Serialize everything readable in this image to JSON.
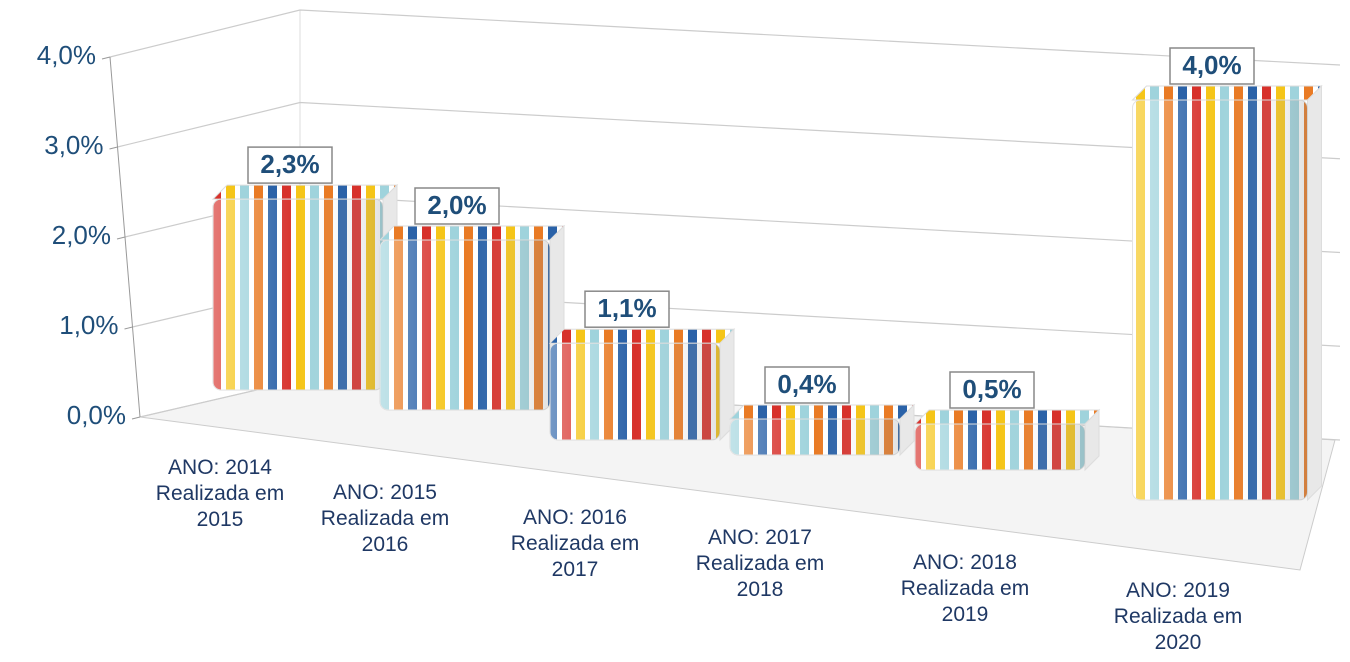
{
  "chart_data": {
    "type": "bar3d",
    "categories": [
      "ANO: 2014\nRealizada em\n2015",
      "ANO: 2015\nRealizada em\n2016",
      "ANO: 2016\nRealizada em\n2017",
      "ANO: 2017\nRealizada em\n2018",
      "ANO: 2018\nRealizada em\n2019",
      "ANO: 2019\nRealizada em\n2020"
    ],
    "values": [
      2.3,
      2.0,
      1.1,
      0.4,
      0.5,
      4.0
    ],
    "value_labels": [
      "2,3%",
      "2,0%",
      "1,1%",
      "0,4%",
      "0,5%",
      "4,0%"
    ],
    "ylim": [
      0,
      4
    ],
    "yticks": [
      {
        "value": 0,
        "label": "0,0%"
      },
      {
        "value": 1,
        "label": "1,0%"
      },
      {
        "value": 2,
        "label": "2,0%"
      },
      {
        "value": 3,
        "label": "3,0%"
      },
      {
        "value": 4,
        "label": "4,0%"
      }
    ],
    "grid": true,
    "colors": [
      "#d7312b",
      "#f5c518",
      "#9fd3dc",
      "#e97b25",
      "#2a62a8"
    ]
  }
}
